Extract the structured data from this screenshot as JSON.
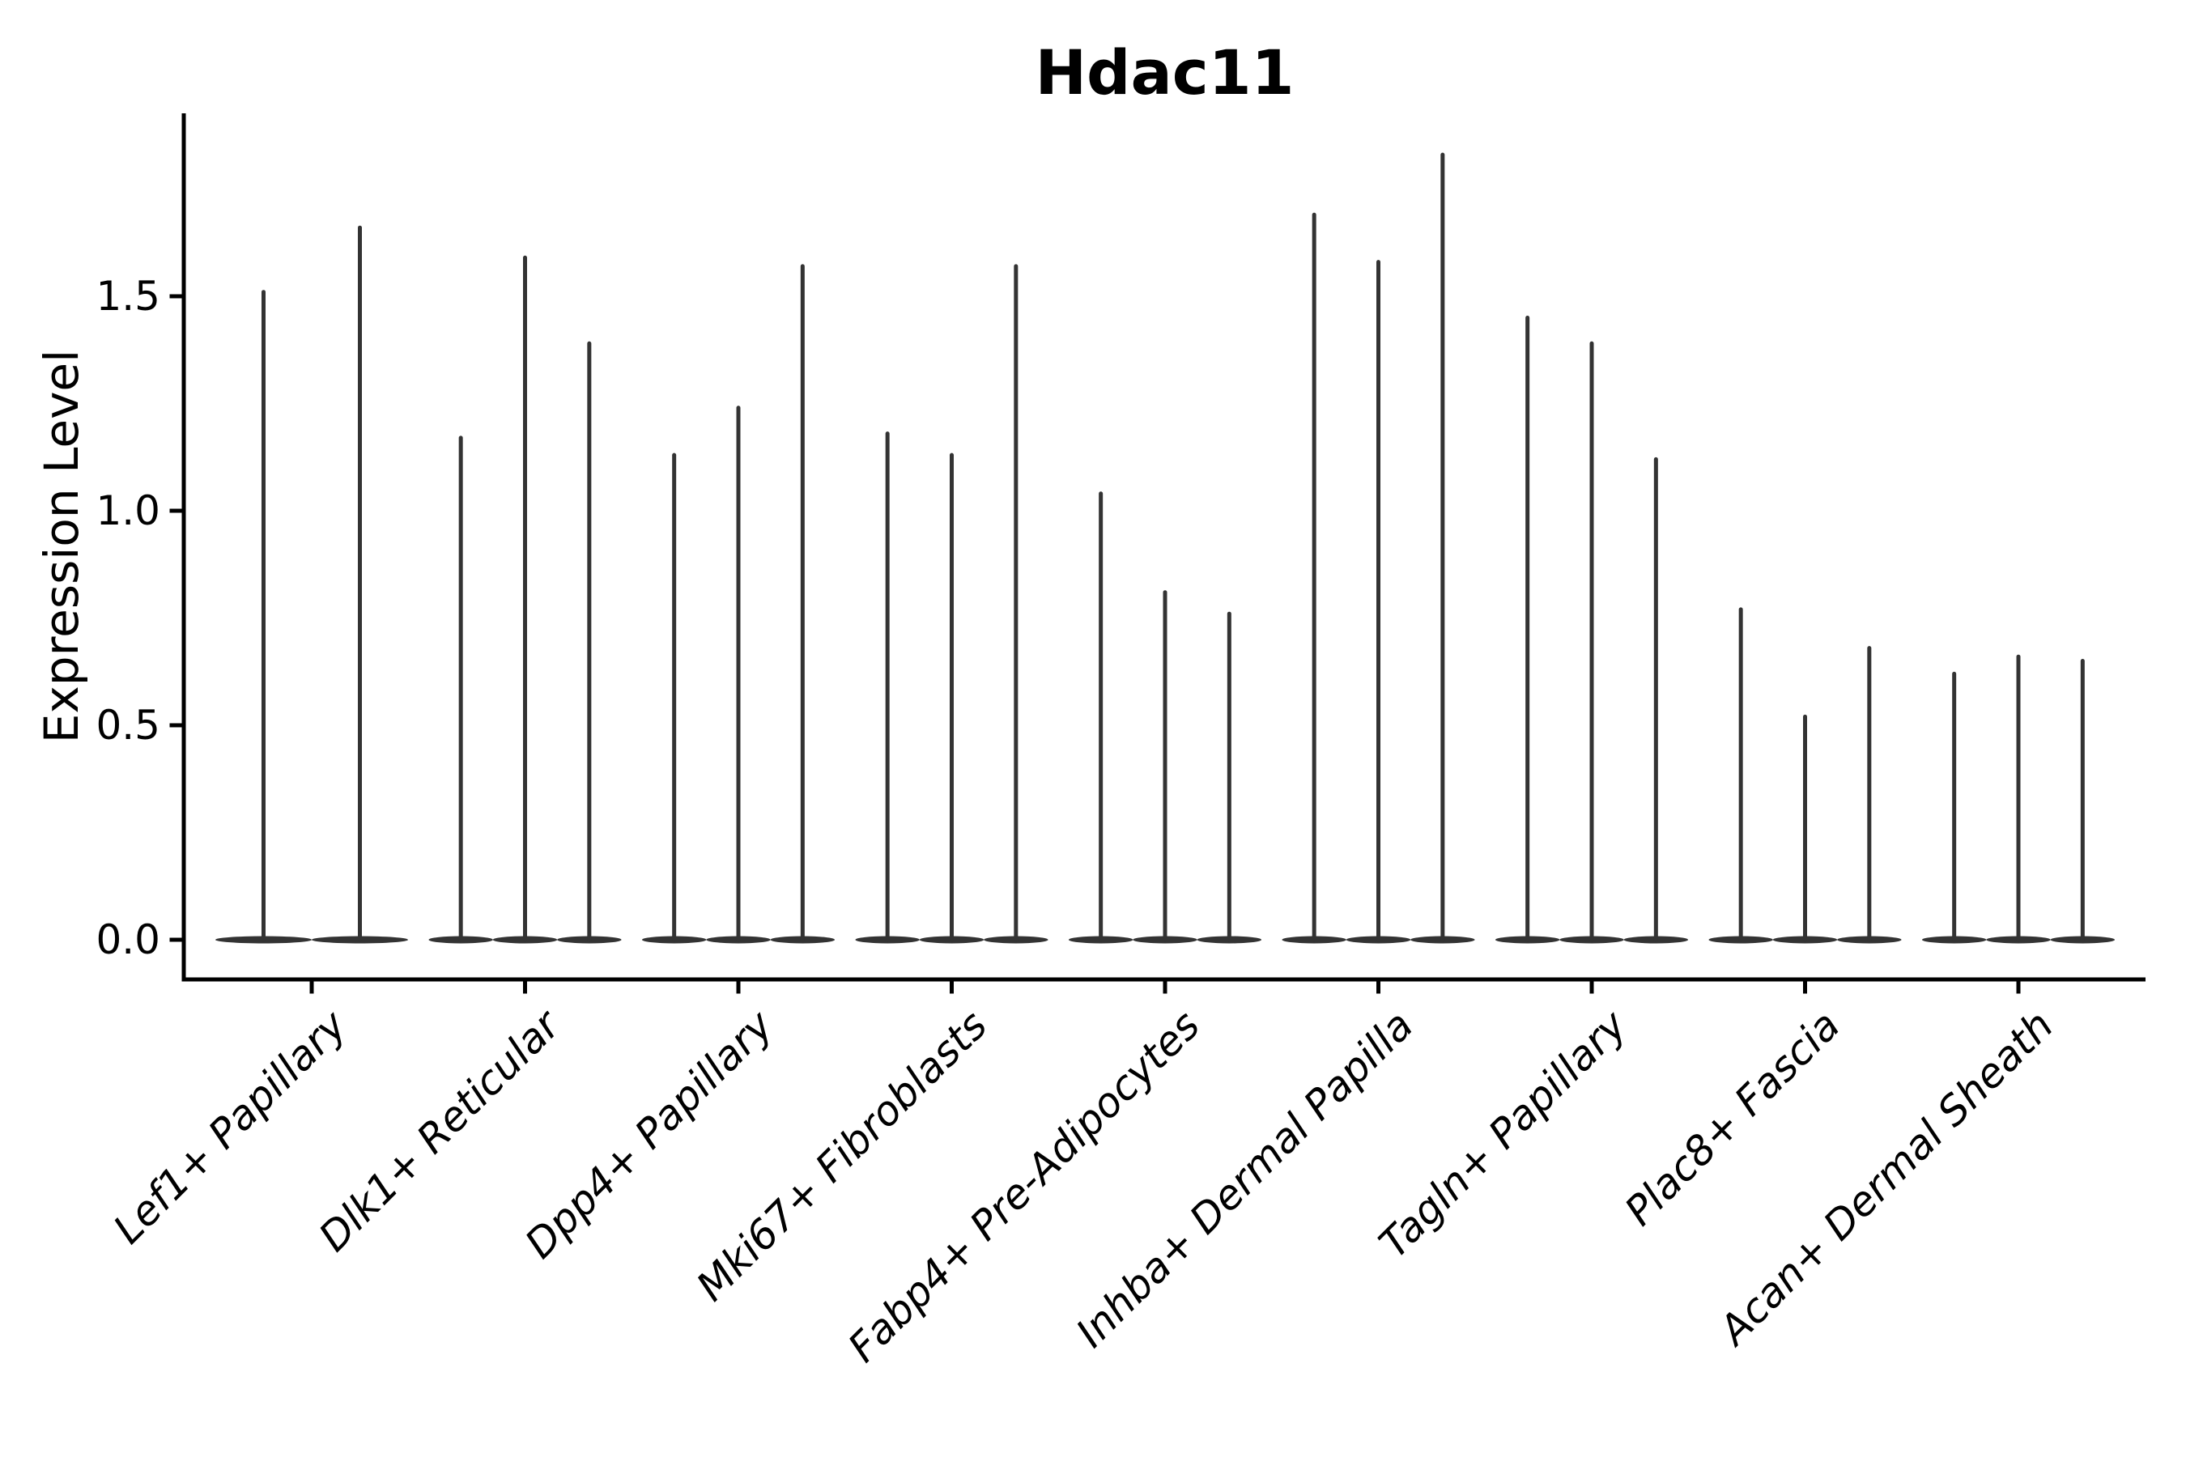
{
  "title": "Hdac11",
  "y_axis": {
    "label": "Expression Level",
    "tick_labels": [
      "0.0",
      "0.5",
      "1.0",
      "1.5"
    ],
    "tick_values": [
      0.0,
      0.5,
      1.0,
      1.5
    ]
  },
  "colors": {
    "violin": "#333333",
    "axis": "#000000",
    "text": "#000000",
    "background": "#ffffff"
  },
  "chart_data": {
    "type": "violin",
    "title": "Hdac11",
    "xlabel": "",
    "ylabel": "Expression Level",
    "ylim": [
      -0.09,
      1.93
    ],
    "yticks": [
      0.0,
      0.5,
      1.0,
      1.5
    ],
    "grid": false,
    "legend": false,
    "style_note": "Each violin's density mass sits flat at 0 with a single thin spike rising to its maximum value",
    "categories": [
      "Lef1+ Papillary",
      "Dlk1+ Reticular",
      "Dpp4+ Papillary",
      "Mki67+ Fibroblasts",
      "Fabp4+ Pre-Adipocytes",
      "Inhba+ Dermal Papilla",
      "Tagln+ Papillary",
      "Plac8+ Fascia",
      "Acan+ Dermal Sheath"
    ],
    "groups": [
      {
        "category": "Lef1+ Papillary",
        "violin_max_values": [
          1.51,
          1.66
        ]
      },
      {
        "category": "Dlk1+ Reticular",
        "violin_max_values": [
          1.17,
          1.59,
          1.39
        ]
      },
      {
        "category": "Dpp4+ Papillary",
        "violin_max_values": [
          1.13,
          1.24,
          1.57
        ]
      },
      {
        "category": "Mki67+ Fibroblasts",
        "violin_max_values": [
          1.18,
          1.13,
          1.57
        ]
      },
      {
        "category": "Fabp4+ Pre-Adipocytes",
        "violin_max_values": [
          1.04,
          0.81,
          0.76
        ]
      },
      {
        "category": "Inhba+ Dermal Papilla",
        "violin_max_values": [
          1.69,
          1.58,
          1.83
        ]
      },
      {
        "category": "Tagln+ Papillary",
        "violin_max_values": [
          1.45,
          1.39,
          1.12
        ]
      },
      {
        "category": "Plac8+ Fascia",
        "violin_max_values": [
          0.77,
          0.52,
          0.68
        ]
      },
      {
        "category": "Acan+ Dermal Sheath",
        "violin_max_values": [
          0.62,
          0.66,
          0.65
        ]
      }
    ]
  }
}
